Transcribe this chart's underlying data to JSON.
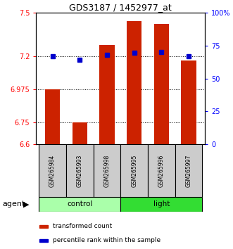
{
  "title": "GDS3187 / 1452977_at",
  "samples": [
    "GSM265984",
    "GSM265993",
    "GSM265998",
    "GSM265995",
    "GSM265996",
    "GSM265997"
  ],
  "red_values": [
    6.975,
    6.75,
    7.28,
    7.44,
    7.42,
    7.17
  ],
  "blue_values": [
    7.2,
    7.175,
    7.21,
    7.225,
    7.23,
    7.2
  ],
  "y_min": 6.6,
  "y_max": 7.5,
  "y_ticks_left": [
    6.6,
    6.75,
    6.975,
    7.2,
    7.5
  ],
  "y_ticks_right": [
    0,
    25,
    50,
    75,
    100
  ],
  "y_ticks_right_labels": [
    "0",
    "25",
    "50",
    "75",
    "100%"
  ],
  "ctrl_color": "#AAFFAA",
  "light_color": "#33DD33",
  "bar_color": "#CC2200",
  "blue_color": "#0000CC",
  "bar_width": 0.55,
  "baseline": 6.6,
  "agent_label": "agent",
  "legend_items": [
    "transformed count",
    "percentile rank within the sample"
  ],
  "legend_colors": [
    "#CC2200",
    "#0000CC"
  ],
  "grid_lines": [
    6.75,
    6.975,
    7.2
  ]
}
